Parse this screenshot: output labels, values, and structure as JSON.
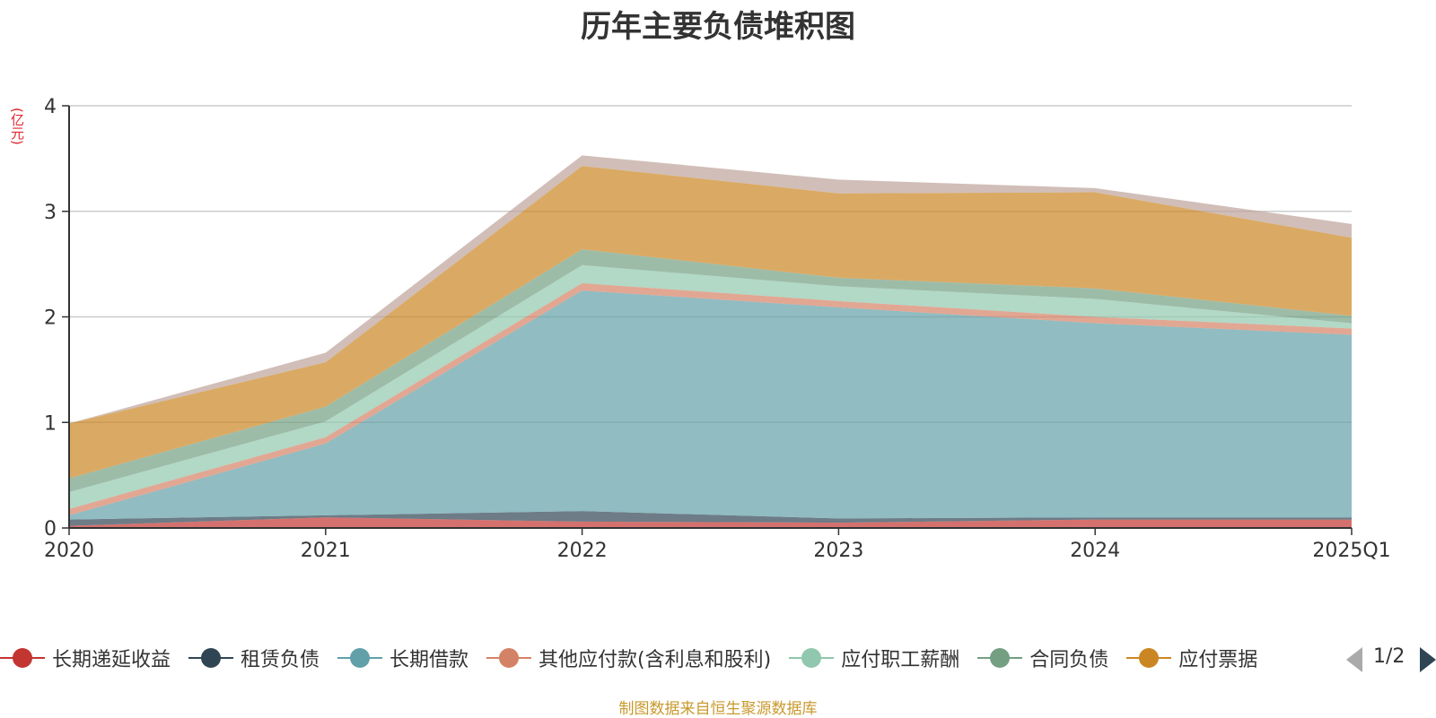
{
  "title": "历年主要负债堆积图",
  "unit": "(亿元)",
  "source": "制图数据来自恒生聚源数据库",
  "legend": {
    "items": [
      {
        "label": "长期递延收益",
        "color": "#c23531"
      },
      {
        "label": "租赁负债",
        "color": "#2f4554"
      },
      {
        "label": "长期借款",
        "color": "#61a0a8"
      },
      {
        "label": "其他应付款(含利息和股利)",
        "color": "#d48265"
      },
      {
        "label": "应付职工薪酬",
        "color": "#91c7ae"
      },
      {
        "label": "合同负债",
        "color": "#749f83"
      },
      {
        "label": "应付票据",
        "color": "#ca8622"
      }
    ],
    "page": "1/2"
  },
  "chart_data": {
    "type": "area",
    "stacked": true,
    "categories": [
      "2020",
      "2021",
      "2022",
      "2023",
      "2024",
      "2025Q1"
    ],
    "ylim": [
      0,
      4
    ],
    "yticks": [
      0,
      1,
      2,
      3,
      4
    ],
    "grid": true,
    "series": [
      {
        "name": "长期递延收益",
        "color": "#c23531",
        "values": [
          0.02,
          0.1,
          0.06,
          0.05,
          0.08,
          0.08
        ]
      },
      {
        "name": "租赁负债",
        "color": "#2f4554",
        "values": [
          0.06,
          0.02,
          0.1,
          0.04,
          0.02,
          0.02
        ]
      },
      {
        "name": "长期借款",
        "color": "#61a0a8",
        "values": [
          0.04,
          0.68,
          2.09,
          2.0,
          1.84,
          1.73
        ]
      },
      {
        "name": "其他应付款(含利息和股利)",
        "color": "#d48265",
        "values": [
          0.06,
          0.06,
          0.07,
          0.06,
          0.06,
          0.06
        ]
      },
      {
        "name": "应付职工薪酬",
        "color": "#91c7ae",
        "values": [
          0.16,
          0.15,
          0.17,
          0.14,
          0.17,
          0.05
        ]
      },
      {
        "name": "合同负债",
        "color": "#749f83",
        "values": [
          0.13,
          0.14,
          0.15,
          0.08,
          0.1,
          0.07
        ]
      },
      {
        "name": "应付票据",
        "color": "#ca8622",
        "values": [
          0.52,
          0.42,
          0.79,
          0.8,
          0.91,
          0.74
        ]
      },
      {
        "color": "#bda29a",
        "values": [
          0.0,
          0.09,
          0.1,
          0.13,
          0.04,
          0.13
        ]
      }
    ]
  }
}
